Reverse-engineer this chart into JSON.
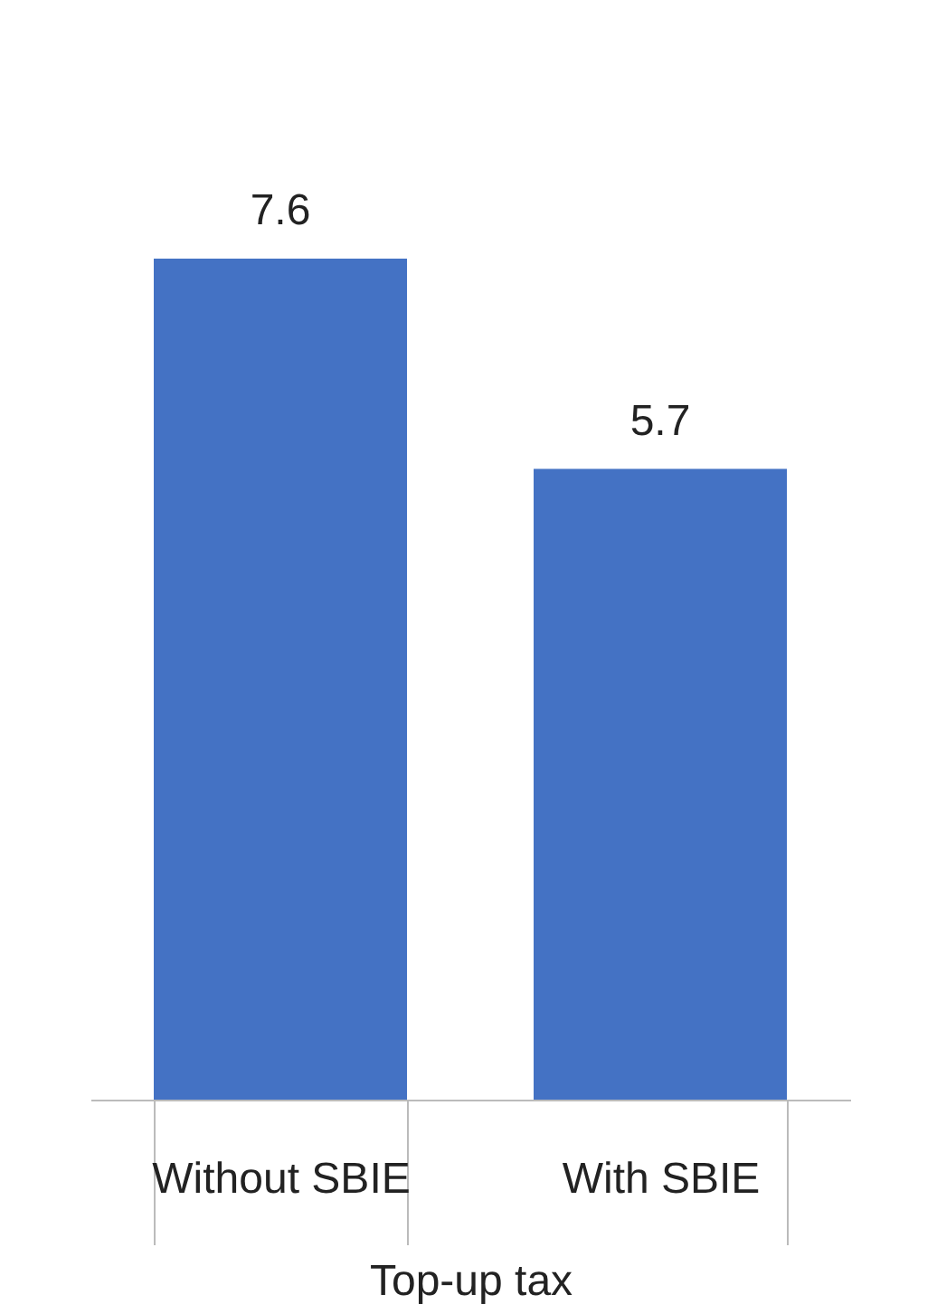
{
  "chart_data": {
    "type": "bar",
    "xlabel": "Top-up tax",
    "categories": [
      "Without SBIE",
      "With SBIE"
    ],
    "values": [
      7.6,
      5.7
    ],
    "color": "#4472c4",
    "data_labels": true
  }
}
